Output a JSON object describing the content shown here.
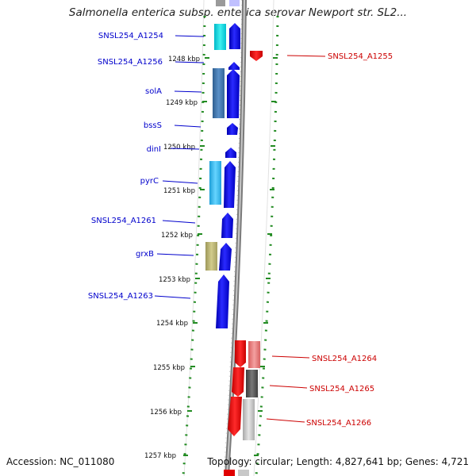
{
  "title": "Salmonella enterica subsp. enterica serovar Newport str. SL2...",
  "footer": {
    "accession": "Accession: NC_011080",
    "topology": "Topology: circular; Length: 4,827,641 bp; Genes: 4,721"
  },
  "scale": {
    "ticks": [
      "1248 kbp",
      "1249 kbp",
      "1250 kbp",
      "1251 kbp",
      "1252 kbp",
      "1253 kbp",
      "1254 kbp",
      "1255 kbp",
      "1256 kbp",
      "1257 kbp"
    ]
  },
  "genes_left": [
    {
      "name": "SNSL254_A1254",
      "label_color": "#0000cc",
      "fill": "#00e0e0",
      "strand": "forward"
    },
    {
      "name": "SNSL254_A1256",
      "label_color": "#0000cc",
      "fill": "#0000e0",
      "strand": "forward"
    },
    {
      "name": "solA",
      "label_color": "#0000cc",
      "fill": "#4a7fb5",
      "strand": "forward"
    },
    {
      "name": "bssS",
      "label_color": "#0000cc",
      "fill": "#0000e0",
      "strand": "forward"
    },
    {
      "name": "dinI",
      "label_color": "#0000cc",
      "fill": "#0000e0",
      "strand": "forward"
    },
    {
      "name": "pyrC",
      "label_color": "#0000cc",
      "fill": "#33bbee",
      "strand": "forward"
    },
    {
      "name": "SNSL254_A1261",
      "label_color": "#0000cc",
      "fill": "#0000e0",
      "strand": "forward"
    },
    {
      "name": "grxB",
      "label_color": "#0000cc",
      "fill": "#bdb76b",
      "strand": "forward"
    },
    {
      "name": "SNSL254_A1263",
      "label_color": "#0000cc",
      "fill": "#0000e0",
      "strand": "forward"
    }
  ],
  "genes_right": [
    {
      "name": "SNSL254_A1255",
      "label_color": "#cc0000",
      "fill": "#e00000",
      "strand": "reverse"
    },
    {
      "name": "SNSL254_A1264",
      "label_color": "#cc0000",
      "fill": "#e00000",
      "strand": "reverse"
    },
    {
      "name": "SNSL254_A1265",
      "label_color": "#cc0000",
      "fill": "#e00000",
      "strand": "reverse"
    },
    {
      "name": "SNSL254_A1266",
      "label_color": "#cc0000",
      "fill": "#e00000",
      "strand": "reverse"
    }
  ],
  "colors": {
    "forward_label": "#0000cc",
    "reverse_label": "#cc0000",
    "backbone": "#888888",
    "dotted_guide": "#228b22"
  }
}
